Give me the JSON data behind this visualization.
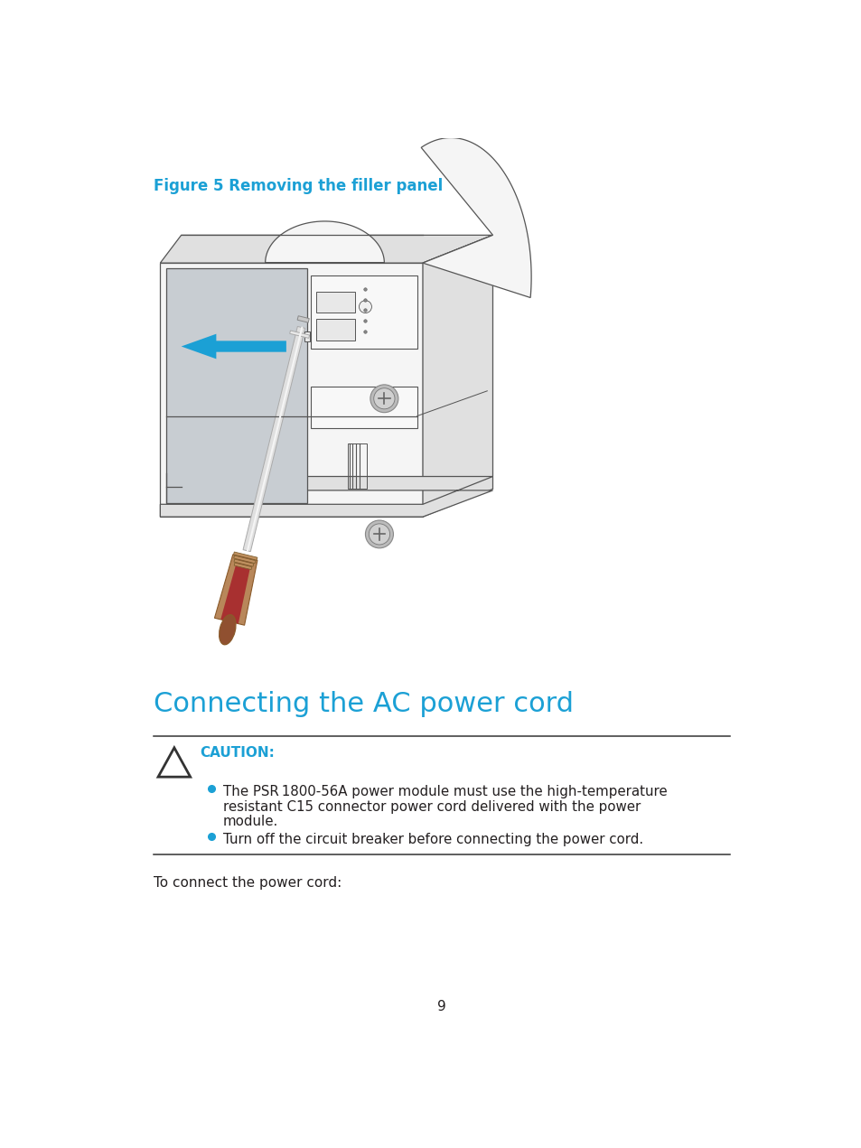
{
  "bg_color": "#ffffff",
  "cyan_color": "#1ba0d5",
  "black_color": "#231f20",
  "figure_label": "Figure 5 Removing the filler panel",
  "section_title": "Connecting the AC power cord",
  "caution_label": "CAUTION:",
  "bullet1_line1": "The PSR 1800-56A power module must use the high-temperature",
  "bullet1_line2": "resistant C15 connector power cord delivered with the power",
  "bullet1_line3": "module.",
  "bullet2": "Turn off the circuit breaker before connecting the power cord.",
  "body_text": "To connect the power cord:",
  "page_number": "9",
  "device_edge": "#555555",
  "device_fill_front": "#f5f5f5",
  "device_fill_side": "#e0e0e0",
  "filler_panel_color": "#c8cdd2",
  "screwdriver_shaft_color": "#d0d0d0",
  "screwdriver_handle_outer": "#b8875a",
  "screwdriver_handle_inner": "#a83030",
  "screwdriver_cap_color": "#905030",
  "screw_color": "#bbbbbb"
}
